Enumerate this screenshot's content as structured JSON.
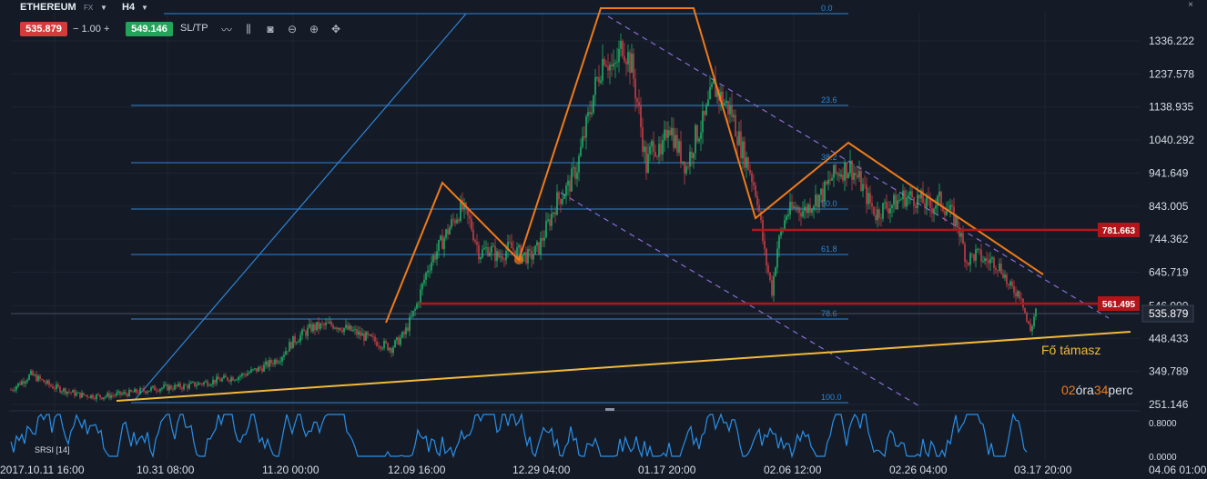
{
  "toolbar": {
    "symbol": "ETHEREUM",
    "symbol_type": "FX",
    "timeframe": "H4",
    "bid": "535.879",
    "quantity": "1.00",
    "minus": "−",
    "plus": "+",
    "ask": "549.146",
    "sltp_label": "SL/TP",
    "close_label": "×"
  },
  "tools": [
    {
      "icon": "line-chart-icon",
      "glyph": "〰"
    },
    {
      "icon": "candlestick-icon",
      "glyph": "⫼"
    },
    {
      "icon": "camera-icon",
      "glyph": "◙"
    },
    {
      "icon": "zoom-out-icon",
      "glyph": "⊖"
    },
    {
      "icon": "zoom-in-icon",
      "glyph": "⊕"
    },
    {
      "icon": "crosshair-icon",
      "glyph": "✥"
    }
  ],
  "colors": {
    "background": "#141b26",
    "fib_line": "#2f84d6",
    "bull": "#22c46e",
    "bear": "#e0434a",
    "pattern": "#f07a1a",
    "support": "#f2b93b",
    "channel": "#8a6bd6",
    "level_red": "#b3161a",
    "rsi": "#2a8fe8"
  },
  "chart_data": {
    "type": "candlestick",
    "symbol": "ETHEREUM",
    "timeframe": "H4",
    "current_price": 535.879,
    "y_ticks": [
      "1336.222",
      "1237.578",
      "1138.935",
      "1040.292",
      "941.649",
      "843.005",
      "744.362",
      "645.719",
      "546.000",
      "448.433",
      "349.789",
      "251.146"
    ],
    "x_ticks": [
      "2017.10.11 16:00",
      "10.31 08:00",
      "11.20 00:00",
      "12.09 16:00",
      "12.29 04:00",
      "01.17 20:00",
      "02.06 12:00",
      "02.26 04:00",
      "03.17 20:00",
      "04.06 01:00"
    ],
    "fibonacci_levels": [
      "0.0",
      "23.6",
      "38.2",
      "50.0",
      "61.8",
      "78.6",
      "100.0"
    ],
    "horizontal_levels": [
      {
        "label": "781.663",
        "value": 781.663
      },
      {
        "label": "561.495",
        "value": 561.495
      }
    ],
    "annotations": {
      "support_label": "Fő támasz",
      "countdown": {
        "hours": "02",
        "hours_unit": "óra",
        "minutes": "34",
        "minutes_unit": "perc"
      }
    },
    "price_path": [
      [
        0,
        295
      ],
      [
        22,
        340
      ],
      [
        45,
        305
      ],
      [
        75,
        280
      ],
      [
        100,
        275
      ],
      [
        130,
        285
      ],
      [
        160,
        300
      ],
      [
        190,
        305
      ],
      [
        220,
        320
      ],
      [
        250,
        335
      ],
      [
        275,
        360
      ],
      [
        295,
        390
      ],
      [
        310,
        440
      ],
      [
        330,
        480
      ],
      [
        355,
        490
      ],
      [
        375,
        470
      ],
      [
        400,
        440
      ],
      [
        418,
        420
      ],
      [
        432,
        460
      ],
      [
        445,
        540
      ],
      [
        458,
        660
      ],
      [
        470,
        720
      ],
      [
        482,
        780
      ],
      [
        495,
        840
      ],
      [
        505,
        790
      ],
      [
        515,
        700
      ],
      [
        525,
        720
      ],
      [
        535,
        690
      ],
      [
        548,
        720
      ],
      [
        560,
        700
      ],
      [
        570,
        690
      ],
      [
        580,
        720
      ],
      [
        590,
        790
      ],
      [
        600,
        860
      ],
      [
        612,
        900
      ],
      [
        622,
        960
      ],
      [
        632,
        1080
      ],
      [
        642,
        1200
      ],
      [
        652,
        1300
      ],
      [
        662,
        1240
      ],
      [
        672,
        1330
      ],
      [
        682,
        1260
      ],
      [
        690,
        1120
      ],
      [
        698,
        960
      ],
      [
        706,
        1040
      ],
      [
        714,
        980
      ],
      [
        722,
        1100
      ],
      [
        732,
        1020
      ],
      [
        742,
        960
      ],
      [
        752,
        1050
      ],
      [
        762,
        1100
      ],
      [
        772,
        1200
      ],
      [
        782,
        1160
      ],
      [
        792,
        1120
      ],
      [
        802,
        1020
      ],
      [
        812,
        950
      ],
      [
        820,
        870
      ],
      [
        828,
        700
      ],
      [
        836,
        590
      ],
      [
        842,
        720
      ],
      [
        852,
        820
      ],
      [
        862,
        840
      ],
      [
        872,
        830
      ],
      [
        882,
        860
      ],
      [
        892,
        880
      ],
      [
        902,
        930
      ],
      [
        912,
        950
      ],
      [
        922,
        960
      ],
      [
        932,
        920
      ],
      [
        942,
        860
      ],
      [
        950,
        820
      ],
      [
        960,
        840
      ],
      [
        970,
        850
      ],
      [
        980,
        870
      ],
      [
        990,
        870
      ],
      [
        1000,
        860
      ],
      [
        1010,
        840
      ],
      [
        1020,
        860
      ],
      [
        1030,
        830
      ],
      [
        1040,
        790
      ],
      [
        1050,
        680
      ],
      [
        1060,
        700
      ],
      [
        1070,
        680
      ],
      [
        1080,
        680
      ],
      [
        1090,
        650
      ],
      [
        1096,
        600
      ],
      [
        1104,
        590
      ],
      [
        1110,
        580
      ],
      [
        1116,
        500
      ],
      [
        1120,
        470
      ],
      [
        1126,
        536
      ]
    ],
    "rsi": {
      "label": "SRSI [14]",
      "y_ticks": [
        "0.8000",
        "0.0000"
      ]
    }
  }
}
